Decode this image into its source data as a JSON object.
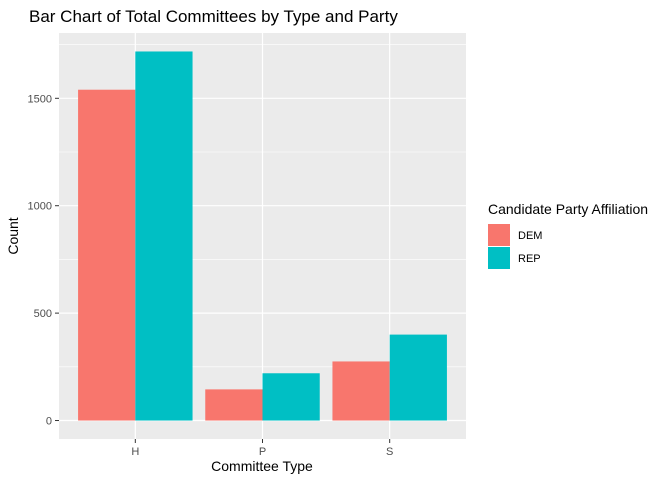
{
  "chart_data": {
    "type": "bar",
    "title": "Bar Chart of Total Committees by Type and Party",
    "xlabel": "Committee Type",
    "ylabel": "Count",
    "categories": [
      "H",
      "P",
      "S"
    ],
    "series": [
      {
        "name": "DEM",
        "values": [
          1540,
          145,
          275
        ],
        "color": "#F8766D"
      },
      {
        "name": "REP",
        "values": [
          1718,
          220,
          400
        ],
        "color": "#00BFC4"
      }
    ],
    "yticks": [
      0,
      500,
      1000,
      1500
    ],
    "ytick_labels": [
      "0",
      "500",
      "1000",
      "1500"
    ],
    "ylim": [
      -86,
      1804
    ],
    "legend": {
      "title": "Candidate Party Affiliation",
      "placement": "right"
    },
    "grid": true,
    "panel_background": "#EBEBEB",
    "grid_color": "#FFFFFF"
  }
}
